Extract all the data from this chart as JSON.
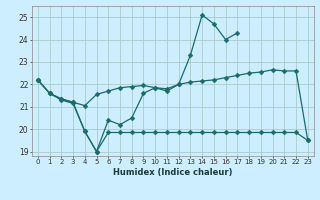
{
  "xlabel": "Humidex (Indice chaleur)",
  "line1_x": [
    0,
    1,
    2,
    3,
    4,
    5,
    6,
    7,
    8,
    9,
    10,
    11,
    12,
    13,
    14,
    15,
    16,
    17
  ],
  "line1_y": [
    22.2,
    21.6,
    21.3,
    21.15,
    19.9,
    19.0,
    20.4,
    20.2,
    20.5,
    21.6,
    21.85,
    21.7,
    22.0,
    23.3,
    25.1,
    24.7,
    24.0,
    24.3
  ],
  "line2_x": [
    0,
    1,
    2,
    3,
    4,
    5,
    6,
    7,
    8,
    9,
    10,
    11,
    12,
    13,
    14,
    15,
    16,
    17,
    18,
    19,
    20,
    21,
    22,
    23
  ],
  "line2_y": [
    22.2,
    21.6,
    21.35,
    21.2,
    21.05,
    21.55,
    21.7,
    21.85,
    21.9,
    21.95,
    21.85,
    21.8,
    22.0,
    22.1,
    22.15,
    22.2,
    22.3,
    22.4,
    22.5,
    22.55,
    22.65,
    22.6,
    22.6,
    19.5
  ],
  "line3_x": [
    0,
    1,
    2,
    3,
    4,
    5,
    6,
    7,
    8,
    9,
    10,
    11,
    12,
    13,
    14,
    15,
    16,
    17,
    18,
    19,
    20,
    21,
    22,
    23
  ],
  "line3_y": [
    22.2,
    21.6,
    21.35,
    21.2,
    19.9,
    19.0,
    19.85,
    19.85,
    19.85,
    19.85,
    19.85,
    19.85,
    19.85,
    19.85,
    19.85,
    19.85,
    19.85,
    19.85,
    19.85,
    19.85,
    19.85,
    19.85,
    19.85,
    19.5
  ],
  "ylim": [
    18.8,
    25.5
  ],
  "yticks": [
    19,
    20,
    21,
    22,
    23,
    24,
    25
  ],
  "xlim": [
    -0.5,
    23.5
  ],
  "bg_color": "#cceeff",
  "grid_color": "#aacccc",
  "line_color": "#1a6b6b",
  "markersize": 2.5,
  "linewidth": 0.9
}
